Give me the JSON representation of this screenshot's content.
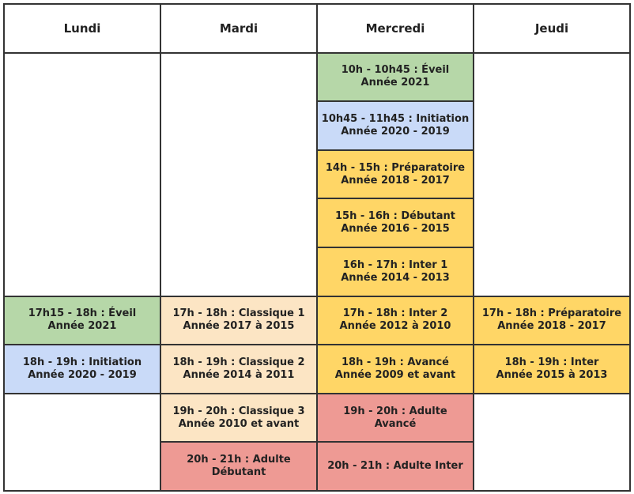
{
  "days": [
    "Lundi",
    "Mardi",
    "Mercredi",
    "Jeudi"
  ],
  "columns": [
    {
      "items": [
        {
          "lines": [
            "17h15 - 18h : Éveil",
            "Année 2021"
          ]
        },
        {
          "lines": [
            "18h - 19h : Initiation",
            "Année 2020 - 2019"
          ]
        }
      ]
    },
    {
      "items": [
        {
          "lines": [
            "17h - 18h : Classique 1",
            "Année 2017 à 2015"
          ]
        },
        {
          "lines": [
            "18h - 19h : Classique 2",
            "Année 2014 à 2011"
          ]
        },
        {
          "lines": [
            "19h - 20h : Classique 3",
            "Année 2010 et avant"
          ]
        },
        {
          "lines": [
            "20h - 21h : Adulte",
            "Débutant"
          ]
        }
      ]
    },
    {
      "items": [
        {
          "lines": [
            "10h - 10h45 : Éveil",
            "Année 2021"
          ]
        },
        {
          "lines": [
            "10h45 - 11h45 : Initiation",
            "Année 2020 - 2019"
          ]
        },
        {
          "lines": [
            "14h - 15h : Préparatoire",
            "Année 2018 - 2017"
          ]
        },
        {
          "lines": [
            "15h - 16h : Débutant",
            "Année 2016 - 2015"
          ]
        },
        {
          "lines": [
            "16h - 17h : Inter 1",
            "Année 2014 - 2013"
          ]
        },
        {
          "lines": [
            "17h - 18h : Inter 2",
            "Année 2012 à 2010"
          ]
        },
        {
          "lines": [
            "18h - 19h : Avancé",
            "Année 2009 et avant"
          ]
        },
        {
          "lines": [
            "19h - 20h : Adulte",
            "Avancé"
          ]
        },
        {
          "lines": [
            "20h - 21h : Adulte Inter"
          ]
        }
      ]
    },
    {
      "items": [
        {
          "lines": [
            "17h - 18h : Préparatoire",
            "Année 2018 - 2017"
          ]
        },
        {
          "lines": [
            "18h - 19h : Inter",
            "Année 2015 à 2013"
          ]
        }
      ]
    }
  ]
}
